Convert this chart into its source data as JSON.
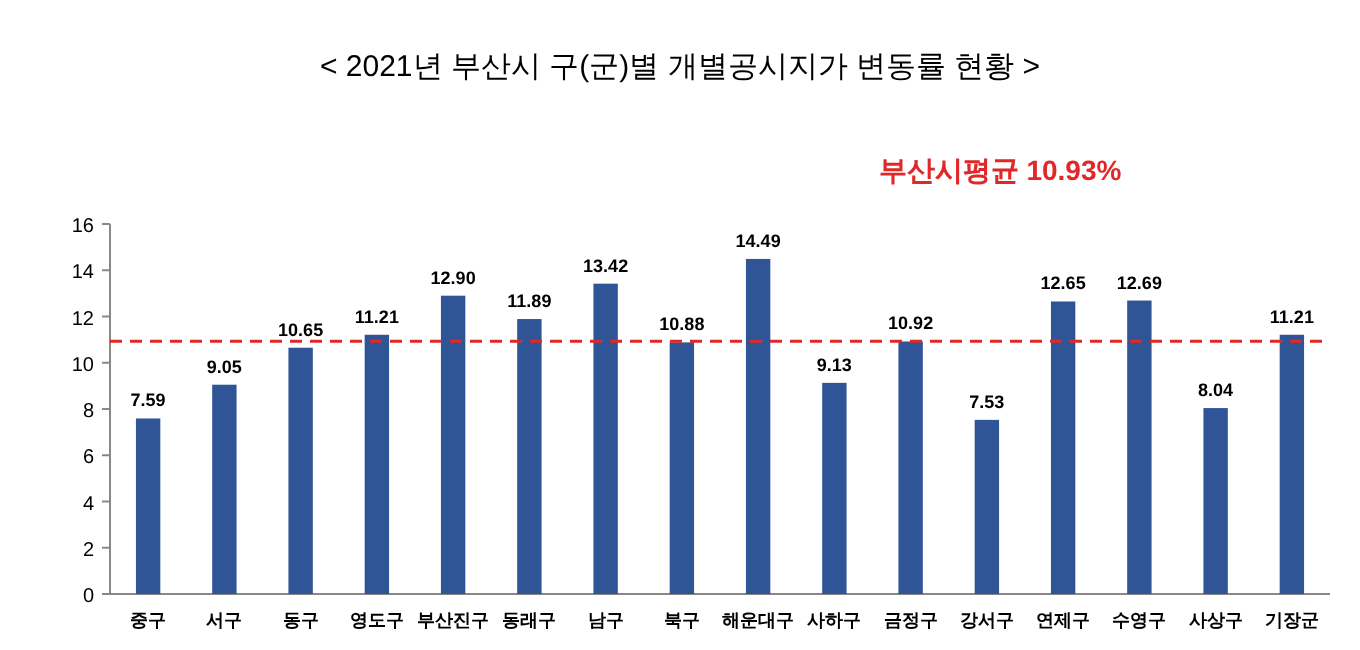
{
  "chart_data": {
    "type": "bar",
    "title": "< 2021년 부산시 구(군)별 개별공시지가 변동률 현황 >",
    "categories": [
      "중구",
      "서구",
      "동구",
      "영도구",
      "부산진구",
      "동래구",
      "남구",
      "북구",
      "해운대구",
      "사하구",
      "금정구",
      "강서구",
      "연제구",
      "수영구",
      "사상구",
      "기장군"
    ],
    "values": [
      7.59,
      9.05,
      10.65,
      11.21,
      12.9,
      11.89,
      13.42,
      10.88,
      14.49,
      9.13,
      10.92,
      7.53,
      12.65,
      12.69,
      8.04,
      11.21
    ],
    "value_labels": [
      "7.59",
      "9.05",
      "10.65",
      "11.21",
      "12.90",
      "11.89",
      "13.42",
      "10.88",
      "14.49",
      "9.13",
      "10.92",
      "7.53",
      "12.65",
      "12.69",
      "8.04",
      "11.21"
    ],
    "color": "#2f5597",
    "ylim": [
      0,
      16
    ],
    "yticks": [
      0,
      2,
      4,
      6,
      8,
      10,
      12,
      14,
      16
    ],
    "ref_lines": [
      {
        "axis": "y",
        "value": 10.93,
        "label": "부산시평균 10.93%",
        "color": "#e02828",
        "line_style": "dashed"
      }
    ],
    "grid": false
  }
}
